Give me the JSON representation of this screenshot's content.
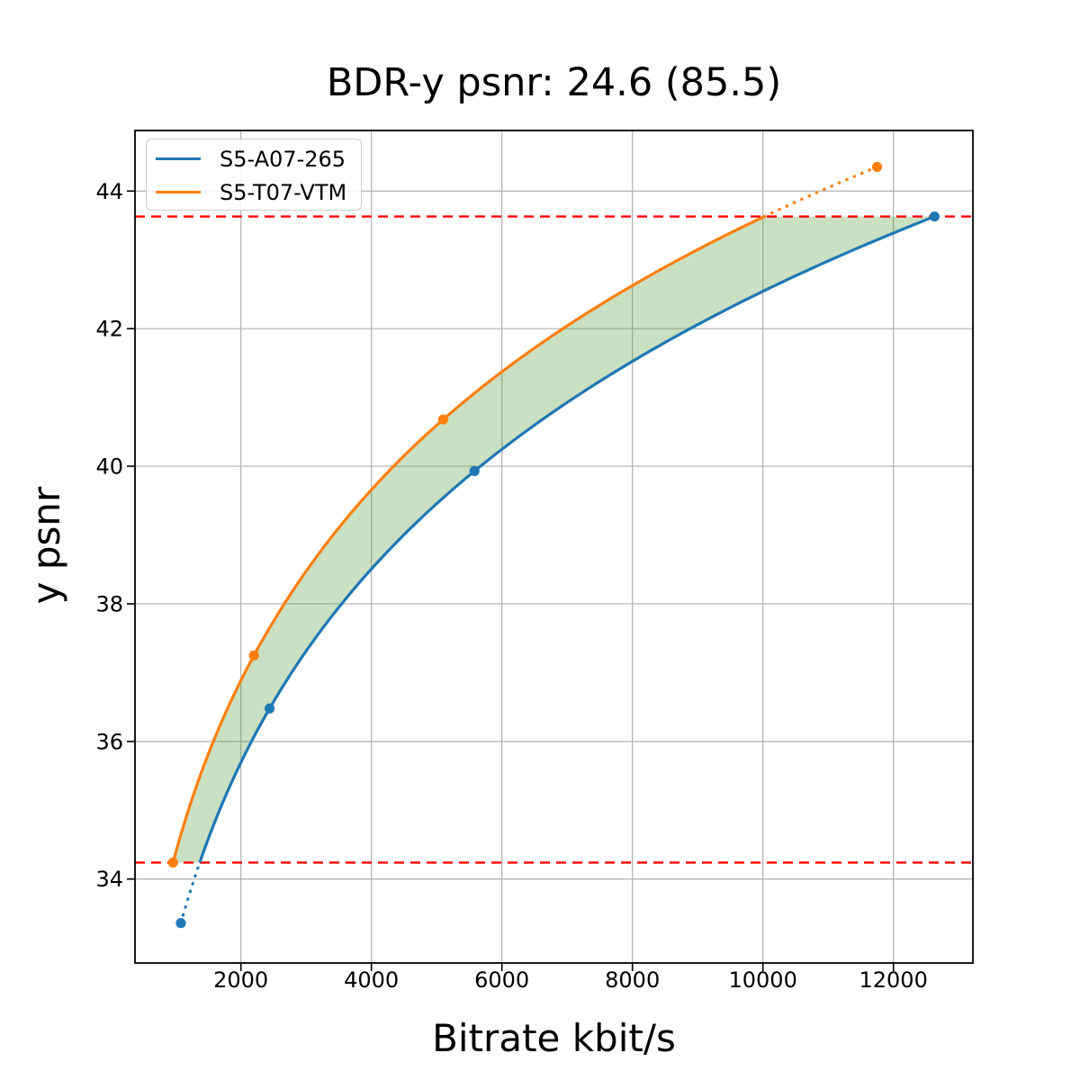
{
  "chart_data": {
    "type": "line",
    "title": "BDR-y psnr: 24.6 (85.5)",
    "xlabel": "Bitrate kbit/s",
    "ylabel": "y psnr",
    "xlim": [
      377,
      13218
    ],
    "ylim": [
      32.78,
      44.88
    ],
    "xticks": [
      2000,
      4000,
      6000,
      8000,
      10000,
      12000
    ],
    "yticks": [
      34,
      36,
      38,
      40,
      42,
      44
    ],
    "grid": true,
    "grid_color": "#b0b0b0",
    "legend_position": "upper left",
    "interpolation": "pchip-log-x",
    "out_of_interval_style": "dotted",
    "series": [
      {
        "name": "S5-A07-265",
        "color": "#1f77b4",
        "marker": "circle",
        "points": [
          [
            1080,
            33.36
          ],
          [
            2440,
            36.48
          ],
          [
            5580,
            39.93
          ],
          [
            12630,
            43.63
          ]
        ]
      },
      {
        "name": "S5-T07-VTM",
        "color": "#ff7f0e",
        "marker": "circle",
        "points": [
          [
            960,
            34.24
          ],
          [
            2200,
            37.25
          ],
          [
            5100,
            40.68
          ],
          [
            11750,
            44.35
          ]
        ]
      }
    ],
    "bd_interval_lines": {
      "y_lower": 34.24,
      "y_upper": 43.63,
      "color": "#ff0000",
      "style": "dashed"
    },
    "shaded_region": {
      "fill_color": "#4c9935",
      "opacity": 0.3,
      "description": "area between the two rate-distortion curves inside the common PSNR interval"
    }
  }
}
